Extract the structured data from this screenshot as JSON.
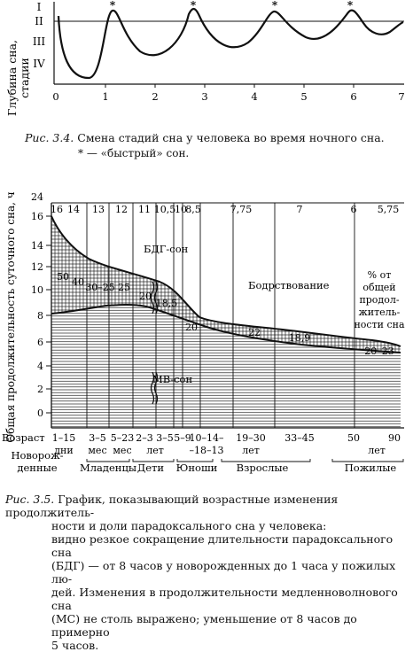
{
  "fig34": {
    "ylabel_line1": "Глубина сна,",
    "ylabel_line2": "стадии",
    "stages": [
      "I",
      "II",
      "III",
      "IV"
    ],
    "x_ticks": [
      "0",
      "1",
      "2",
      "3",
      "4",
      "5",
      "6",
      "7"
    ],
    "star": "*",
    "caption_label": "Рис. 3.4.",
    "caption_text": "Смена стадий сна у человека во время ночного сна.",
    "caption_note": "* — «быстрый» сон."
  },
  "fig35": {
    "ylabel": "Общая продолжительность суточного сна, ч",
    "y_ticks": [
      "0",
      "2",
      "4",
      "6",
      "8",
      "10",
      "12",
      "14",
      "16",
      "24"
    ],
    "top_values": [
      "16",
      "14",
      "13",
      "12",
      "11",
      "10,5",
      "10",
      "8,5",
      "7,75",
      "7",
      "6",
      "5,75"
    ],
    "percents": [
      "50",
      "40",
      "30–25",
      "25",
      "20",
      "18,5",
      "20",
      "22",
      "18,9",
      "20–23"
    ],
    "label_bdg": "БДГ-сон",
    "label_mv": "МВ-сон",
    "label_wake": "Бодрствование",
    "label_pct_1": "% от",
    "label_pct_2": "общей",
    "label_pct_3": "продол-",
    "label_pct_4": "житель-",
    "label_pct_5": "ности сна",
    "age_label": "Возраст",
    "ages": [
      "1–15",
      "3–5",
      "5–23",
      "2–3",
      "3–5",
      "5–9",
      "10–14–",
      "19–30",
      "33–45",
      "50",
      "90"
    ],
    "ages_2": [
      "–18–13"
    ],
    "units": [
      "дни",
      "мес",
      "мес",
      "лет",
      "лет",
      "лет"
    ],
    "groups": [
      "Новорож-",
      "денные",
      "Младенцы",
      "Дети",
      "Юноши",
      "Взрослые",
      "Пожилые"
    ],
    "caption_label": "Рис. 3.5.",
    "caption_l1": "График, показывающий возрастные изменения продолжитель-",
    "caption_l2": "ности и доли парадоксального сна у человека:",
    "caption_l3": "видно резкое сокращение длительности парадоксального сна",
    "caption_l4": "(БДГ) — от 8 часов у новорожденных до 1 часа у пожилых лю-",
    "caption_l5": "дей. Изменения в продолжительности медленноволнового сна",
    "caption_l6": "(МС) не столь выражено; уменьшение от 8 часов до примерно",
    "caption_l7": "5 часов."
  }
}
